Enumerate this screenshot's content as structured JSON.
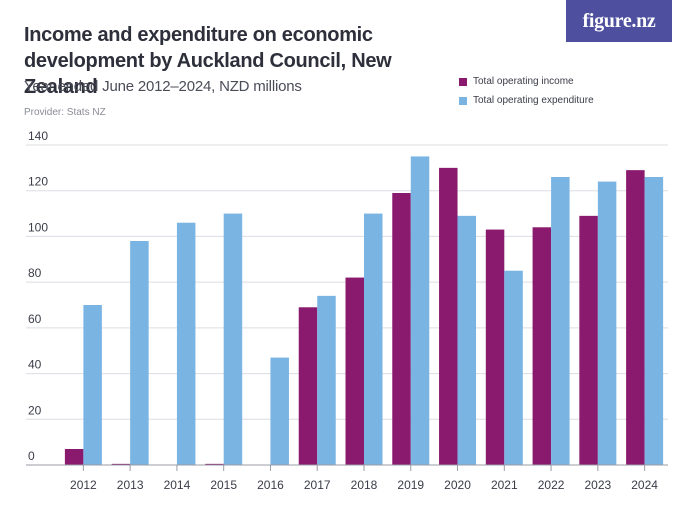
{
  "brand": {
    "logo_text": "figure.nz"
  },
  "chart_data": {
    "type": "bar",
    "title": "Income and expenditure on economic development by Auckland Council, New Zealand",
    "subtitle": "Year ended June 2012–2024, NZD millions",
    "provider": "Provider: Stats NZ",
    "categories": [
      "2012",
      "2013",
      "2014",
      "2015",
      "2016",
      "2017",
      "2018",
      "2019",
      "2020",
      "2021",
      "2022",
      "2023",
      "2024"
    ],
    "series": [
      {
        "name": "Total operating income",
        "color": "#8a1a6e",
        "values": [
          7,
          0.5,
          0,
          0.5,
          0,
          69,
          82,
          119,
          130,
          103,
          104,
          109,
          129
        ]
      },
      {
        "name": "Total operating expenditure",
        "color": "#7ab4e3",
        "values": [
          70,
          98,
          106,
          110,
          47,
          74,
          110,
          135,
          109,
          85,
          126,
          124,
          126
        ]
      }
    ],
    "ylim": [
      0,
      140
    ],
    "yticks": [
      0,
      20,
      40,
      60,
      80,
      100,
      120,
      140
    ],
    "legend_position": "top-right",
    "grid": true
  }
}
